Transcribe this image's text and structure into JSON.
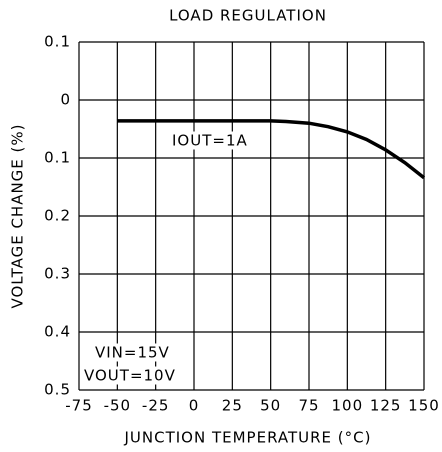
{
  "chart_data": {
    "type": "line",
    "title": "LOAD REGULATION",
    "x_label": "JUNCTION TEMPERATURE (°C)",
    "y_label": "VOLTAGE CHANGE (%)",
    "annotations": [
      "IOUT=1A",
      "VIN=15V",
      "VOUT=10V"
    ],
    "x": [
      -50,
      -25,
      0,
      25,
      50,
      60,
      75,
      87.5,
      100,
      112.5,
      125,
      137.5,
      150
    ],
    "series": [
      {
        "name": "IOUT=1A",
        "color": "#000000",
        "values": [
          -0.036,
          -0.036,
          -0.036,
          -0.036,
          -0.036,
          -0.037,
          -0.04,
          -0.046,
          -0.055,
          -0.068,
          -0.086,
          -0.108,
          -0.134
        ]
      }
    ],
    "xlim": [
      -75,
      150
    ],
    "xticks": [
      -75,
      -50,
      -25,
      0,
      25,
      50,
      75,
      100,
      125,
      150
    ],
    "ylim": [
      -0.5,
      0.1
    ],
    "yticks": [
      {
        "value": 0.1,
        "label": "0.1"
      },
      0,
      {
        "value": -0.1,
        "label": "0.1"
      },
      {
        "value": -0.2,
        "label": "0.2"
      },
      {
        "value": -0.3,
        "label": "0.3"
      },
      {
        "value": -0.4,
        "label": "0.4"
      },
      {
        "value": -0.5,
        "label": "0.5"
      }
    ],
    "grid": true
  }
}
